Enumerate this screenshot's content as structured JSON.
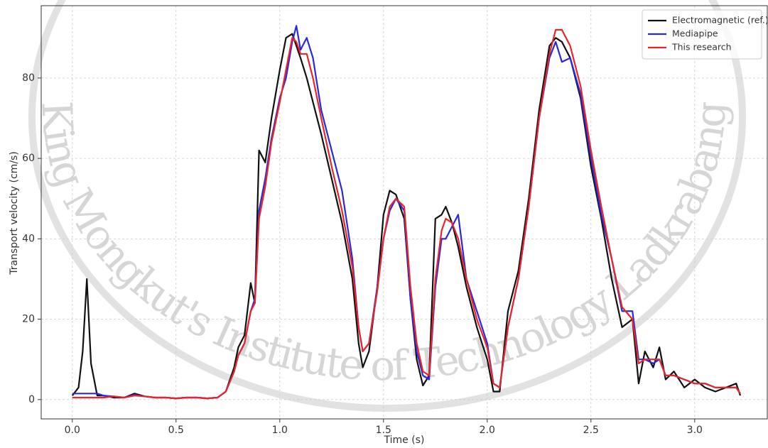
{
  "chart_data": {
    "type": "line",
    "watermark": "King Mongkut's Institute of Technology Ladkrabang",
    "xlabel": "Time (s)",
    "ylabel": "Transport velocity (cm/s)",
    "x": [
      0,
      0.03,
      0.05,
      0.07,
      0.09,
      0.12,
      0.15,
      0.2,
      0.25,
      0.3,
      0.35,
      0.4,
      0.45,
      0.5,
      0.55,
      0.6,
      0.65,
      0.7,
      0.74,
      0.78,
      0.8,
      0.83,
      0.86,
      0.88,
      0.9,
      0.93,
      0.96,
      1.0,
      1.03,
      1.06,
      1.08,
      1.1,
      1.13,
      1.16,
      1.2,
      1.25,
      1.3,
      1.35,
      1.38,
      1.4,
      1.43,
      1.47,
      1.5,
      1.53,
      1.56,
      1.6,
      1.63,
      1.66,
      1.69,
      1.72,
      1.75,
      1.78,
      1.8,
      1.83,
      1.86,
      1.9,
      1.95,
      2.0,
      2.03,
      2.06,
      2.1,
      2.15,
      2.2,
      2.25,
      2.3,
      2.33,
      2.36,
      2.4,
      2.45,
      2.5,
      2.55,
      2.6,
      2.65,
      2.7,
      2.73,
      2.76,
      2.8,
      2.83,
      2.86,
      2.9,
      2.95,
      3.0,
      3.05,
      3.1,
      3.15,
      3.2,
      3.22
    ],
    "series": [
      {
        "name": "Electromagnetic (ref.)",
        "color": "#111111",
        "values": [
          1,
          3,
          12,
          30,
          9,
          1,
          1,
          0.5,
          0.5,
          1.5,
          0.8,
          0.5,
          0.5,
          0.3,
          0.5,
          0.5,
          0.3,
          0.5,
          2,
          8,
          13,
          16,
          29,
          24,
          62,
          59,
          70,
          82,
          90,
          91,
          88,
          85,
          80,
          74,
          66,
          55,
          44,
          30,
          14,
          8,
          12,
          28,
          46,
          52,
          51,
          45,
          25,
          10,
          3.5,
          6,
          45,
          46,
          48,
          44,
          38,
          28,
          18,
          10,
          2,
          2,
          22,
          32,
          50,
          72,
          88,
          90,
          89,
          85,
          75,
          58,
          45,
          30,
          18,
          20,
          4,
          12,
          8,
          13,
          5,
          7,
          3,
          5,
          3,
          2,
          3,
          4,
          1
        ]
      },
      {
        "name": "Mediapipe",
        "color": "#2a2ad6",
        "values": [
          1.5,
          1.5,
          1.5,
          1.5,
          1.5,
          1.5,
          1,
          0.8,
          0.5,
          1.2,
          0.8,
          0.5,
          0.5,
          0.3,
          0.5,
          0.5,
          0.3,
          0.5,
          2,
          7,
          11,
          14,
          22,
          25,
          47,
          55,
          65,
          75,
          80,
          89,
          93,
          87,
          90,
          85,
          72,
          62,
          52,
          35,
          18,
          12,
          14,
          28,
          40,
          47,
          50,
          47,
          25,
          12,
          6,
          5,
          28,
          40,
          40,
          43,
          46,
          30,
          22,
          14,
          4,
          3,
          18,
          30,
          48,
          70,
          85,
          89,
          84,
          85,
          76,
          60,
          46,
          35,
          22,
          22,
          10,
          10,
          9,
          10,
          6,
          6,
          5,
          4,
          4,
          3,
          3,
          3,
          1.5
        ]
      },
      {
        "name": "This research",
        "color": "#e8252b",
        "values": [
          0.5,
          0.5,
          0.5,
          0.5,
          0.5,
          0.5,
          0.5,
          0.8,
          0.5,
          1,
          0.8,
          0.5,
          0.5,
          0.3,
          0.5,
          0.5,
          0.3,
          0.5,
          2,
          7,
          11,
          14,
          22,
          24,
          45,
          53,
          64,
          74,
          82,
          90,
          89,
          86,
          86,
          80,
          70,
          58,
          47,
          33,
          18,
          12,
          14,
          27,
          40,
          48,
          50,
          48,
          28,
          14,
          7,
          6,
          30,
          42,
          45,
          44,
          40,
          30,
          20,
          13,
          4,
          3,
          18,
          30,
          48,
          70,
          86,
          92,
          92,
          88,
          78,
          62,
          48,
          35,
          23,
          20,
          9,
          10,
          10,
          10,
          6,
          6,
          5,
          4,
          4,
          3,
          3,
          3,
          1.5
        ]
      }
    ],
    "xlim": [
      -0.15,
      3.35
    ],
    "ylim": [
      -4.8,
      98
    ],
    "xticks": [
      {
        "value": 0,
        "label": "0.0"
      },
      {
        "value": 0.5,
        "label": "0.5"
      },
      {
        "value": 1,
        "label": "1.0"
      },
      {
        "value": 1.5,
        "label": "1.5"
      },
      {
        "value": 2,
        "label": "2.0"
      },
      {
        "value": 2.5,
        "label": "2.5"
      },
      {
        "value": 3,
        "label": "3.0"
      }
    ],
    "yticks": [
      0,
      20,
      40,
      60,
      80
    ],
    "grid": true,
    "legend": "upper right"
  }
}
